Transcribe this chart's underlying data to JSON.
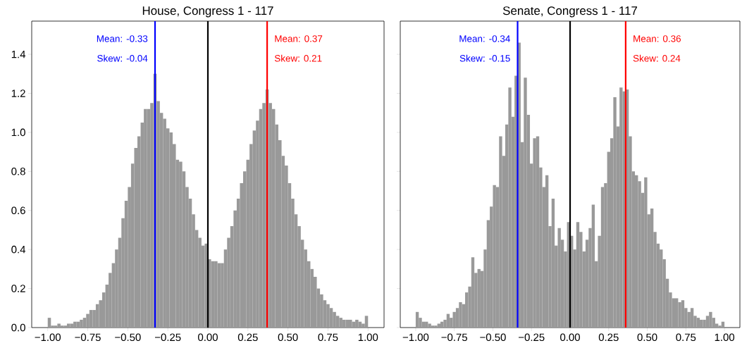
{
  "chart_data": [
    {
      "type": "histogram",
      "title": "House, Congress 1 - 117",
      "color": "#999999",
      "bins": [
        -1.0,
        -0.98,
        -0.96,
        -0.94,
        -0.92,
        -0.9,
        -0.88,
        -0.86,
        -0.84,
        -0.82,
        -0.8,
        -0.78,
        -0.76,
        -0.74,
        -0.72,
        -0.7,
        -0.68,
        -0.66,
        -0.64,
        -0.62,
        -0.6,
        -0.58,
        -0.56,
        -0.54,
        -0.52,
        -0.5,
        -0.48,
        -0.46,
        -0.44,
        -0.42,
        -0.4,
        -0.38,
        -0.36,
        -0.34,
        -0.32,
        -0.3,
        -0.28,
        -0.26,
        -0.24,
        -0.22,
        -0.2,
        -0.18,
        -0.16,
        -0.14,
        -0.12,
        -0.1,
        -0.08,
        -0.06,
        -0.04,
        -0.02,
        0.0,
        0.02,
        0.04,
        0.06,
        0.08,
        0.1,
        0.12,
        0.14,
        0.16,
        0.18,
        0.2,
        0.22,
        0.24,
        0.26,
        0.28,
        0.3,
        0.32,
        0.34,
        0.36,
        0.38,
        0.4,
        0.42,
        0.44,
        0.46,
        0.48,
        0.5,
        0.52,
        0.54,
        0.56,
        0.58,
        0.6,
        0.62,
        0.64,
        0.66,
        0.68,
        0.7,
        0.72,
        0.74,
        0.76,
        0.78,
        0.8,
        0.82,
        0.84,
        0.86,
        0.88,
        0.9,
        0.92,
        0.94,
        0.96,
        0.98,
        1.0
      ],
      "values": [
        0.05,
        0.01,
        0.01,
        0.02,
        0.01,
        0.01,
        0.02,
        0.02,
        0.03,
        0.03,
        0.04,
        0.05,
        0.07,
        0.09,
        0.09,
        0.12,
        0.14,
        0.18,
        0.22,
        0.28,
        0.33,
        0.4,
        0.46,
        0.56,
        0.65,
        0.72,
        0.84,
        0.92,
        0.98,
        1.05,
        1.12,
        1.12,
        1.15,
        1.3,
        1.16,
        1.1,
        1.07,
        1.02,
        1.0,
        0.94,
        0.86,
        0.85,
        0.8,
        0.72,
        0.66,
        0.58,
        0.5,
        0.46,
        0.42,
        0.43,
        0.35,
        0.34,
        0.34,
        0.33,
        0.33,
        0.4,
        0.46,
        0.52,
        0.6,
        0.66,
        0.74,
        0.8,
        0.86,
        0.94,
        1.01,
        1.06,
        1.12,
        1.15,
        1.22,
        1.15,
        1.12,
        1.04,
        0.96,
        0.88,
        0.83,
        0.74,
        0.66,
        0.58,
        0.52,
        0.45,
        0.4,
        0.34,
        0.3,
        0.26,
        0.2,
        0.17,
        0.14,
        0.12,
        0.1,
        0.08,
        0.06,
        0.05,
        0.04,
        0.04,
        0.04,
        0.03,
        0.04,
        0.03,
        0.02,
        0.06
      ],
      "xlim": [
        -1.1,
        1.1
      ],
      "ylim": [
        0,
        1.57
      ],
      "xticks": [
        {
          "value": -1.0,
          "label": "−1.00"
        },
        {
          "value": -0.75,
          "label": "−0.75"
        },
        {
          "value": -0.5,
          "label": "−0.50"
        },
        {
          "value": -0.25,
          "label": "−0.25"
        },
        {
          "value": 0.0,
          "label": "0.00"
        },
        {
          "value": 0.25,
          "label": "0.25"
        },
        {
          "value": 0.5,
          "label": "0.50"
        },
        {
          "value": 0.75,
          "label": "0.75"
        },
        {
          "value": 1.0,
          "label": "1.00"
        }
      ],
      "yticks": [
        {
          "value": 0,
          "label": "0.0"
        },
        {
          "value": 0.2,
          "label": "0.2"
        },
        {
          "value": 0.4,
          "label": "0.4"
        },
        {
          "value": 0.6,
          "label": "0.6"
        },
        {
          "value": 0.8,
          "label": "0.8"
        },
        {
          "value": 1.0,
          "label": "1.0"
        },
        {
          "value": 1.2,
          "label": "1.2"
        },
        {
          "value": 1.4,
          "label": "1.4"
        }
      ],
      "ref_lines": [
        {
          "axis": "x",
          "value": 0,
          "color": "#000000"
        },
        {
          "axis": "x",
          "value": -0.33,
          "color": "#0000ff"
        },
        {
          "axis": "x",
          "value": 0.37,
          "color": "#ff0000"
        }
      ],
      "annotations": [
        {
          "text": "Mean: -0.33",
          "x": -0.33,
          "y": 1.48
        },
        {
          "text": "Skew: -0.04",
          "x": -0.33,
          "y": 1.38
        },
        {
          "text": "Mean:  0.37",
          "x": 0.37,
          "y": 1.48
        },
        {
          "text": "Skew:  0.21",
          "x": 0.37,
          "y": 1.38
        }
      ]
    },
    {
      "type": "histogram",
      "title": "Senate, Congress 1 - 117",
      "color": "#999999",
      "bins": [
        -1.0,
        -0.98,
        -0.96,
        -0.94,
        -0.92,
        -0.9,
        -0.88,
        -0.86,
        -0.84,
        -0.82,
        -0.8,
        -0.78,
        -0.76,
        -0.74,
        -0.72,
        -0.7,
        -0.68,
        -0.66,
        -0.64,
        -0.62,
        -0.6,
        -0.58,
        -0.56,
        -0.54,
        -0.52,
        -0.5,
        -0.48,
        -0.46,
        -0.44,
        -0.42,
        -0.4,
        -0.38,
        -0.36,
        -0.34,
        -0.32,
        -0.3,
        -0.28,
        -0.26,
        -0.24,
        -0.22,
        -0.2,
        -0.18,
        -0.16,
        -0.14,
        -0.12,
        -0.1,
        -0.08,
        -0.06,
        -0.04,
        -0.02,
        0.0,
        0.02,
        0.04,
        0.06,
        0.08,
        0.1,
        0.12,
        0.14,
        0.16,
        0.18,
        0.2,
        0.22,
        0.24,
        0.26,
        0.28,
        0.3,
        0.32,
        0.34,
        0.36,
        0.38,
        0.4,
        0.42,
        0.44,
        0.46,
        0.48,
        0.5,
        0.52,
        0.54,
        0.56,
        0.58,
        0.6,
        0.62,
        0.64,
        0.66,
        0.68,
        0.7,
        0.72,
        0.74,
        0.76,
        0.78,
        0.8,
        0.82,
        0.84,
        0.86,
        0.88,
        0.9,
        0.92,
        0.94,
        0.96,
        0.98,
        1.0
      ],
      "values": [
        0.08,
        0.05,
        0.03,
        0.03,
        0.02,
        0.01,
        0.01,
        0.02,
        0.03,
        0.04,
        0.07,
        0.05,
        0.08,
        0.1,
        0.13,
        0.12,
        0.18,
        0.21,
        0.36,
        0.28,
        0.3,
        0.29,
        0.4,
        0.55,
        0.62,
        0.73,
        0.72,
        0.98,
        0.88,
        1.04,
        1.23,
        1.08,
        1.29,
        1.46,
        0.95,
        1.28,
        1.09,
        0.84,
        0.97,
        0.98,
        0.82,
        0.72,
        0.78,
        0.52,
        0.66,
        0.42,
        0.51,
        0.45,
        0.39,
        0.54,
        0.47,
        0.4,
        0.54,
        0.49,
        0.39,
        0.45,
        0.51,
        0.63,
        0.34,
        0.47,
        0.72,
        0.74,
        0.9,
        0.97,
        1.18,
        1.03,
        1.23,
        1.21,
        1.22,
        0.98,
        0.8,
        0.78,
        0.75,
        0.69,
        0.77,
        0.58,
        0.61,
        0.49,
        0.43,
        0.4,
        0.35,
        0.25,
        0.18,
        0.15,
        0.15,
        0.13,
        0.14,
        0.1,
        0.08,
        0.1,
        0.06,
        0.05,
        0.04,
        0.04,
        0.06,
        0.08,
        0.05,
        0.02,
        0.01,
        0.03
      ],
      "xlim": [
        -1.1,
        1.1
      ],
      "ylim": [
        0,
        1.57
      ],
      "tick_labels": "x",
      "xticks": [
        {
          "value": -1.0,
          "label": "−1.00"
        },
        {
          "value": -0.75,
          "label": "−0.75"
        },
        {
          "value": -0.5,
          "label": "−0.50"
        },
        {
          "value": -0.25,
          "label": "−0.25"
        },
        {
          "value": 0.0,
          "label": "0.00"
        },
        {
          "value": 0.25,
          "label": "0.25"
        },
        {
          "value": 0.5,
          "label": "0.50"
        },
        {
          "value": 0.75,
          "label": "0.75"
        },
        {
          "value": 1.0,
          "label": "1.00"
        }
      ],
      "yticks": [
        {
          "value": 0,
          "label": null
        },
        {
          "value": 0.2,
          "label": null
        },
        {
          "value": 0.4,
          "label": null
        },
        {
          "value": 0.6,
          "label": null
        },
        {
          "value": 0.8,
          "label": null
        },
        {
          "value": 1.0,
          "label": null
        },
        {
          "value": 1.2,
          "label": null
        },
        {
          "value": 1.4,
          "label": null
        }
      ],
      "ref_lines": [
        {
          "axis": "x",
          "value": 0,
          "color": "#000000"
        },
        {
          "axis": "x",
          "value": -0.34,
          "color": "#0000ff"
        },
        {
          "axis": "x",
          "value": 0.36,
          "color": "#ff0000"
        }
      ],
      "annotations": [
        {
          "text": "Mean: -0.34",
          "x": -0.34,
          "y": 1.48
        },
        {
          "text": "Skew: -0.15",
          "x": -0.34,
          "y": 1.38
        },
        {
          "text": "Mean:  0.36",
          "x": 0.36,
          "y": 1.48
        },
        {
          "text": "Skew:  0.24",
          "x": 0.36,
          "y": 1.38
        }
      ]
    }
  ]
}
